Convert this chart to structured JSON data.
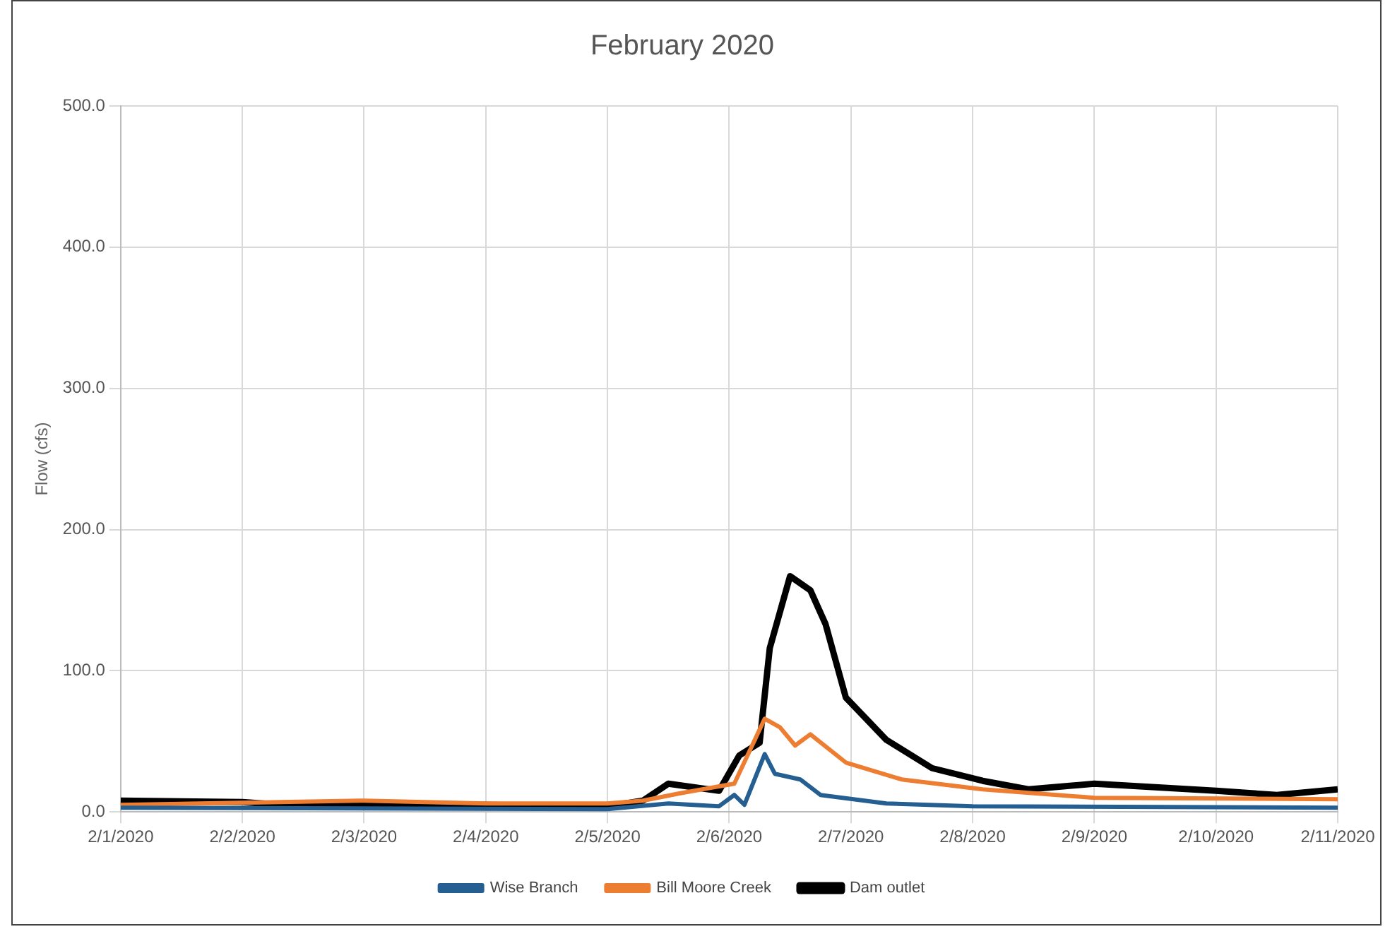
{
  "chart_data": {
    "type": "line",
    "title": "February 2020",
    "ylabel": "Flow (cfs)",
    "ylim": [
      0,
      500
    ],
    "yticks": [
      {
        "value": 0,
        "label": "0.0"
      },
      {
        "value": 100,
        "label": "100.0"
      },
      {
        "value": 200,
        "label": "200.0"
      },
      {
        "value": 300,
        "label": "300.0"
      },
      {
        "value": 400,
        "label": "400.0"
      },
      {
        "value": 500,
        "label": "500.0"
      }
    ],
    "xlim": [
      "2020-02-01",
      "2020-02-11"
    ],
    "xticks": [
      {
        "value": "2020-02-01",
        "label": "2/1/2020"
      },
      {
        "value": "2020-02-02",
        "label": "2/2/2020"
      },
      {
        "value": "2020-02-03",
        "label": "2/3/2020"
      },
      {
        "value": "2020-02-04",
        "label": "2/4/2020"
      },
      {
        "value": "2020-02-05",
        "label": "2/5/2020"
      },
      {
        "value": "2020-02-06",
        "label": "2/6/2020"
      },
      {
        "value": "2020-02-07",
        "label": "2/7/2020"
      },
      {
        "value": "2020-02-08",
        "label": "2/8/2020"
      },
      {
        "value": "2020-02-09",
        "label": "2/9/2020"
      },
      {
        "value": "2020-02-10",
        "label": "2/10/2020"
      },
      {
        "value": "2020-02-11",
        "label": "2/11/2020"
      }
    ],
    "grid": true,
    "legend": "bottom",
    "marker": "none",
    "series": [
      {
        "name": "Wise Branch",
        "color": "#255e91",
        "x": [
          "2020-02-01T00:00",
          "2020-02-05T00:00",
          "2020-02-05T12:00",
          "2020-02-05T22:00",
          "2020-02-06T01:00",
          "2020-02-06T03:00",
          "2020-02-06T07:00",
          "2020-02-06T09:00",
          "2020-02-06T14:00",
          "2020-02-06T18:00",
          "2020-02-07T07:00",
          "2020-02-08T00:00",
          "2020-02-11T00:00"
        ],
        "values": [
          3,
          2,
          6,
          4,
          12,
          5,
          41,
          27,
          23,
          12,
          6,
          4,
          3
        ]
      },
      {
        "name": "Bill Moore Creek",
        "color": "#ed7d31",
        "x": [
          "2020-02-01T00:00",
          "2020-02-03T00:00",
          "2020-02-04T00:00",
          "2020-02-05T00:00",
          "2020-02-05T07:00",
          "2020-02-05T14:00",
          "2020-02-06T01:00",
          "2020-02-06T07:00",
          "2020-02-06T10:00",
          "2020-02-06T13:00",
          "2020-02-06T16:00",
          "2020-02-06T23:00",
          "2020-02-07T10:00",
          "2020-02-08T02:00",
          "2020-02-09T00:00",
          "2020-02-11T00:00"
        ],
        "values": [
          5,
          8,
          6,
          6,
          8,
          13,
          20,
          66,
          60,
          47,
          55,
          35,
          23,
          16,
          10,
          9
        ]
      },
      {
        "name": "Dam outlet",
        "color": "#000000",
        "x": [
          "2020-02-01T00:00",
          "2020-02-02T00:00",
          "2020-02-02T12:00",
          "2020-02-03T00:00",
          "2020-02-04T00:00",
          "2020-02-05T00:00",
          "2020-02-05T07:00",
          "2020-02-05T12:00",
          "2020-02-05T22:00",
          "2020-02-06T02:00",
          "2020-02-06T06:00",
          "2020-02-06T08:00",
          "2020-02-06T12:00",
          "2020-02-06T16:00",
          "2020-02-06T19:00",
          "2020-02-06T23:00",
          "2020-02-07T07:00",
          "2020-02-07T16:00",
          "2020-02-08T02:00",
          "2020-02-08T11:00",
          "2020-02-09T00:00",
          "2020-02-10T00:00",
          "2020-02-10T12:00",
          "2020-02-11T00:00"
        ],
        "values": [
          8,
          7,
          4,
          5,
          5,
          4,
          8,
          20,
          15,
          40,
          49,
          116,
          167,
          157,
          133,
          81,
          51,
          31,
          22,
          16,
          20,
          15,
          12,
          16
        ]
      }
    ]
  }
}
